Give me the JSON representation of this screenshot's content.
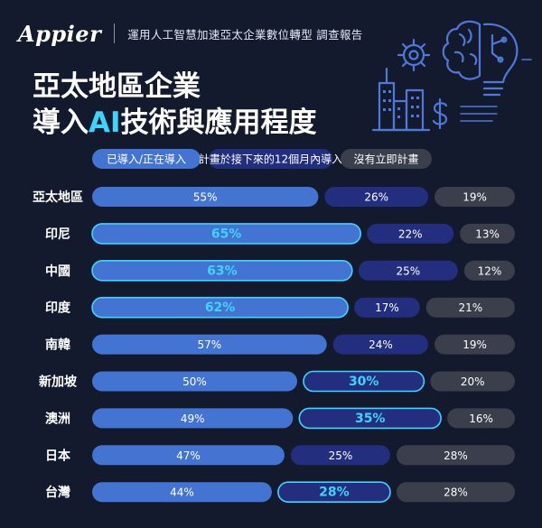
{
  "header": {
    "logo": "Appier",
    "subtitle": "運用人工智慧加速亞太企業數位轉型 調查報告"
  },
  "title": {
    "line1": "亞太地區企業",
    "line2_pre": "導入",
    "line2_accent": "AI",
    "line2_post": "技術與應用程度"
  },
  "illustration": {
    "icons": [
      "gear-icon",
      "brain-icon",
      "lightbulb-icon",
      "city-buildings-icon",
      "dollar-icon"
    ]
  },
  "chart_data": {
    "type": "bar",
    "stacked": true,
    "orientation": "horizontal",
    "unit": "%",
    "categories": [
      "亞太地區",
      "印尼",
      "中國",
      "印度",
      "南韓",
      "新加坡",
      "澳洲",
      "日本",
      "台灣"
    ],
    "series": [
      {
        "name": "已導入/正在導入",
        "values": [
          55,
          65,
          63,
          62,
          57,
          50,
          49,
          47,
          44
        ],
        "color": "#4474d1"
      },
      {
        "name": "計畫於接下來的12個月內導入",
        "values": [
          26,
          22,
          25,
          17,
          24,
          30,
          35,
          25,
          28
        ],
        "color": "#232f7e"
      },
      {
        "name": "沒有立即計畫",
        "values": [
          19,
          13,
          12,
          21,
          19,
          20,
          16,
          28,
          28
        ],
        "color": "#3b3e4b"
      }
    ],
    "highlighted": {
      "已導入/正在導入": [
        "印尼",
        "中國",
        "印度"
      ],
      "計畫於接下來的12個月內導入": [
        "新加坡",
        "澳洲",
        "台灣"
      ]
    },
    "highlight_color": "#3ed4ff",
    "legend_position": "top"
  }
}
